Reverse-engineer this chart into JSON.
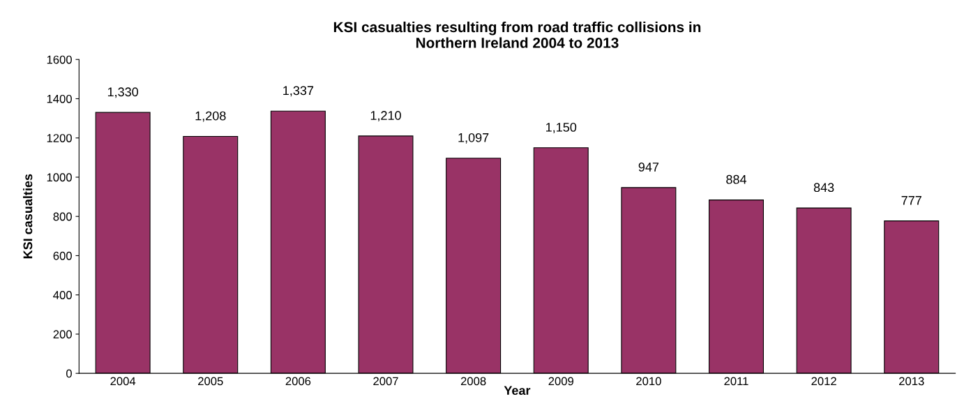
{
  "chart_data": {
    "type": "bar",
    "title": "KSI casualties resulting from road traffic collisions in\nNorthern Ireland 2004 to 2013",
    "xlabel": "Year",
    "ylabel": "KSI casualties",
    "categories": [
      "2004",
      "2005",
      "2006",
      "2007",
      "2008",
      "2009",
      "2010",
      "2011",
      "2012",
      "2013"
    ],
    "values": [
      1330,
      1208,
      1337,
      1210,
      1097,
      1150,
      947,
      884,
      843,
      777
    ],
    "value_labels": [
      "1,330",
      "1,208",
      "1,337",
      "1,210",
      "1,097",
      "1,150",
      "947",
      "884",
      "843",
      "777"
    ],
    "color": "#993366",
    "ylim": [
      0,
      1600
    ],
    "yticks": [
      0,
      200,
      400,
      600,
      800,
      1000,
      1200,
      1400,
      1600
    ],
    "grid": false
  }
}
